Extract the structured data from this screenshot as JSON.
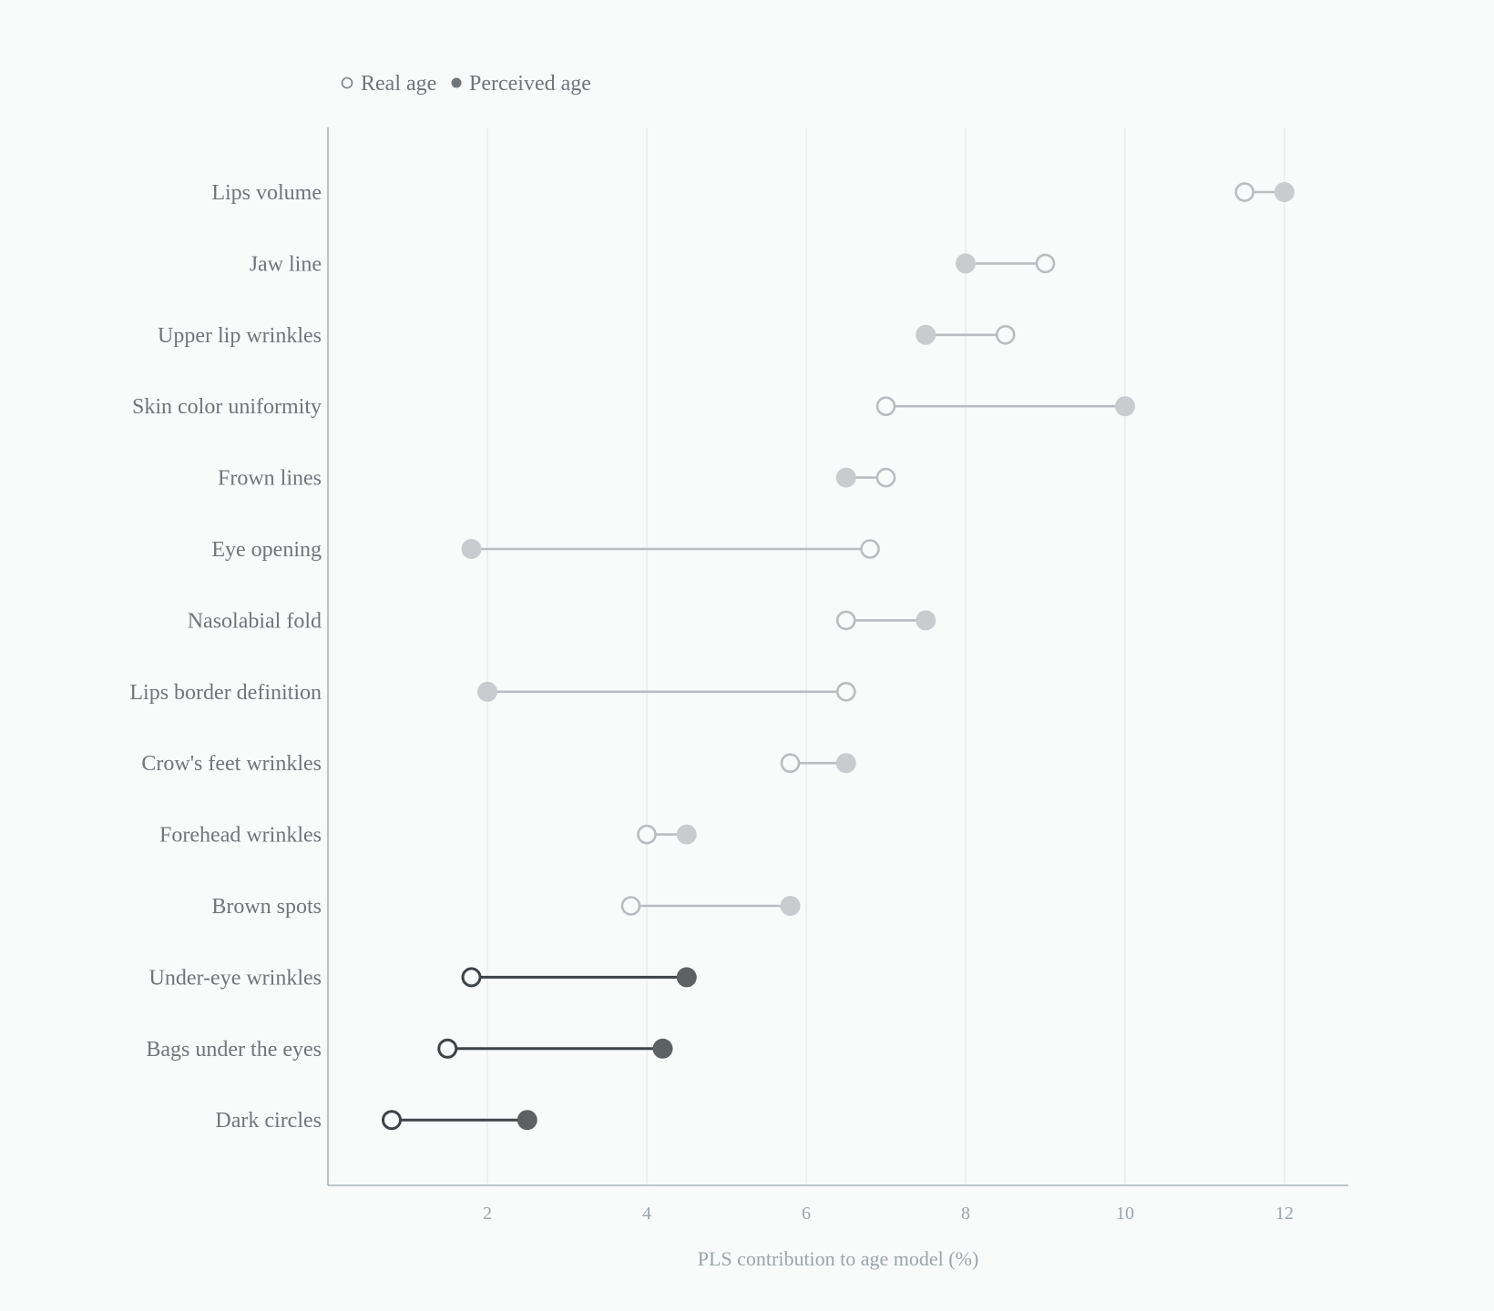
{
  "chart_data": {
    "type": "dumbbell",
    "xlabel": "PLS contribution to age model (%)",
    "ylabel": "",
    "xlim": [
      0,
      12.8
    ],
    "xticks": [
      2,
      4,
      6,
      8,
      10,
      12
    ],
    "grid": true,
    "legend": {
      "placement": "top-left",
      "entries": [
        {
          "label": "Real age",
          "marker": "open-circle"
        },
        {
          "label": "Perceived age",
          "marker": "filled-circle"
        }
      ]
    },
    "categories": [
      "Lips volume",
      "Jaw line",
      "Upper lip wrinkles",
      "Skin color uniformity",
      "Frown lines",
      "Eye opening",
      "Nasolabial fold",
      "Lips border definition",
      "Crow's feet wrinkles",
      "Forehead wrinkles",
      "Brown spots",
      "Under-eye wrinkles",
      "Bags under the eyes",
      "Dark circles"
    ],
    "series": [
      {
        "name": "Real age",
        "values": [
          11.5,
          9.0,
          8.5,
          7.0,
          7.0,
          6.8,
          6.5,
          6.5,
          5.8,
          4.0,
          3.8,
          1.8,
          1.5,
          0.8
        ]
      },
      {
        "name": "Perceived age",
        "values": [
          12.0,
          8.0,
          7.5,
          10.0,
          6.5,
          1.8,
          7.5,
          2.0,
          6.5,
          4.5,
          5.8,
          4.5,
          4.2,
          2.5
        ]
      }
    ],
    "highlighted": [
      "Under-eye wrinkles",
      "Bags under the eyes",
      "Dark circles"
    ],
    "colors": {
      "muted": "#b9bdc0",
      "muted_fill": "#c9ccce",
      "highlight": "#3d4346",
      "highlight_fill": "#5c6164"
    }
  }
}
